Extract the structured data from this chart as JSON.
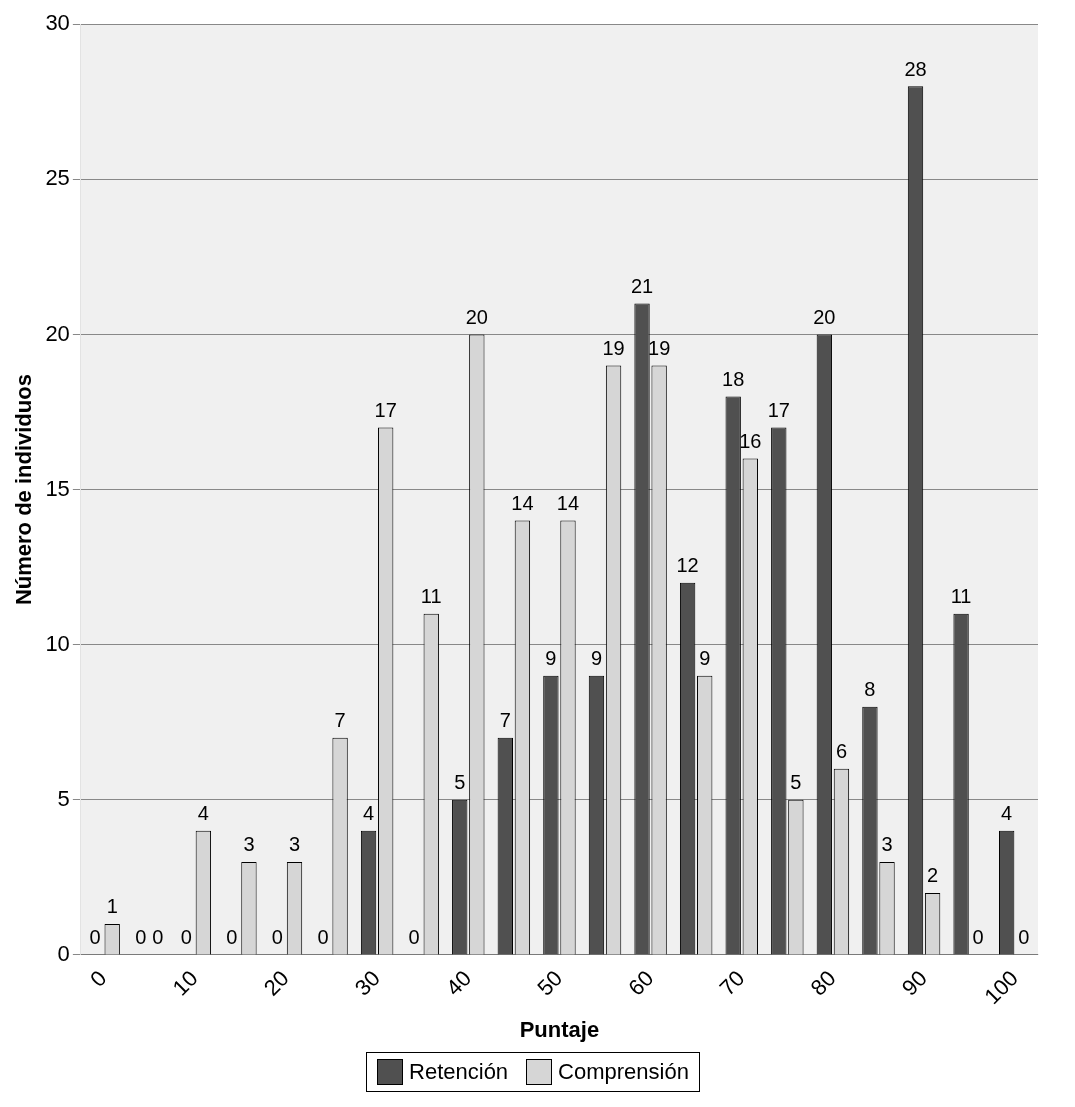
{
  "chart_data": {
    "type": "bar",
    "xlabel": "Puntaje",
    "ylabel": "Número de individuos",
    "categories": [
      "0",
      null,
      "10",
      null,
      "20",
      null,
      "30",
      null,
      "40",
      null,
      "50",
      null,
      "60",
      null,
      "70",
      null,
      "80",
      null,
      "90",
      null,
      "100"
    ],
    "series": [
      {
        "name": "Retención",
        "color": "#505050",
        "values": [
          0,
          0,
          0,
          0,
          0,
          0,
          4,
          0,
          5,
          7,
          9,
          9,
          21,
          12,
          18,
          17,
          20,
          8,
          28,
          11,
          4
        ]
      },
      {
        "name": "Comprensión",
        "color": "#d6d6d6",
        "values": [
          1,
          0,
          4,
          3,
          3,
          7,
          17,
          11,
          20,
          14,
          14,
          19,
          19,
          9,
          16,
          5,
          6,
          3,
          2,
          0,
          0
        ]
      }
    ],
    "ylim": [
      0,
      30
    ],
    "yticks": [
      0,
      5,
      10,
      15,
      20,
      25,
      30
    ],
    "grid": "y",
    "legend": "bottom",
    "data_labels": true
  }
}
